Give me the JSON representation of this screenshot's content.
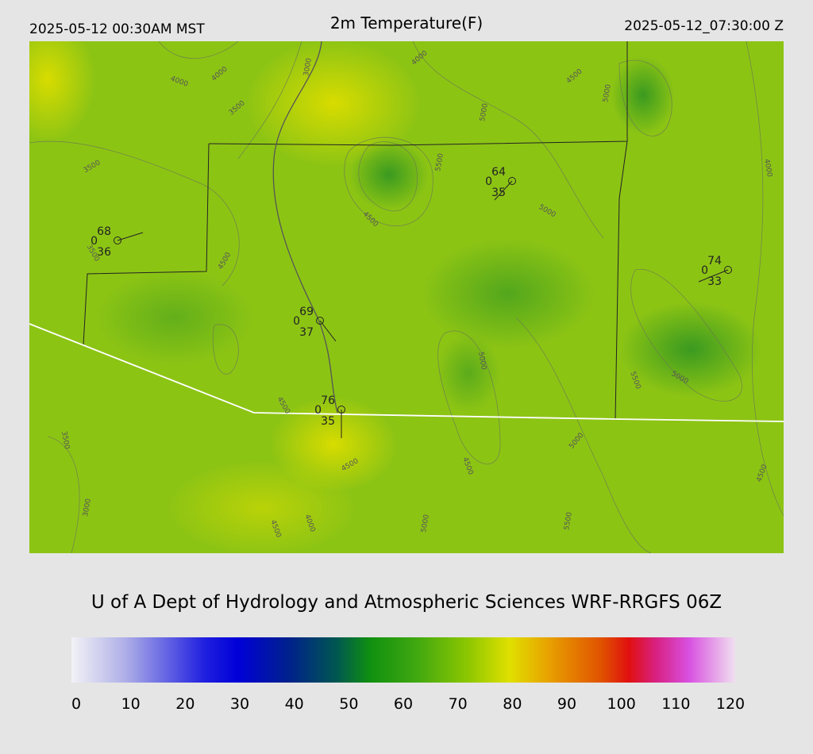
{
  "header": {
    "local_time": "2025-05-12 00:30AM MST",
    "title": "2m Temperature(F)",
    "utc_time": "2025-05-12_07:30:00 Z"
  },
  "stations": [
    {
      "temp": "68",
      "wind": "0",
      "dewpoint": "36"
    },
    {
      "temp": "69",
      "wind": "0",
      "dewpoint": "37"
    },
    {
      "temp": "76",
      "wind": "0",
      "dewpoint": "35"
    },
    {
      "temp": "64",
      "wind": "0",
      "dewpoint": "35"
    },
    {
      "temp": "74",
      "wind": "0",
      "dewpoint": "33"
    }
  ],
  "contour_labels": [
    "4000",
    "4000",
    "3000",
    "3500",
    "4000",
    "4500",
    "5000",
    "3500",
    "5500",
    "4500",
    "5000",
    "5000",
    "4000",
    "4500",
    "3500",
    "4500",
    "5000",
    "5500",
    "5000",
    "4500",
    "5000",
    "4500",
    "4000",
    "3000",
    "4500",
    "5000",
    "5500",
    "4500",
    "3500"
  ],
  "credit": "U of A Dept of Hydrology and Atmospheric Sciences WRF-RRGFS 06Z",
  "colorbar": {
    "ticks": [
      "0",
      "10",
      "20",
      "30",
      "40",
      "50",
      "60",
      "70",
      "80",
      "90",
      "100",
      "110",
      "120"
    ]
  }
}
